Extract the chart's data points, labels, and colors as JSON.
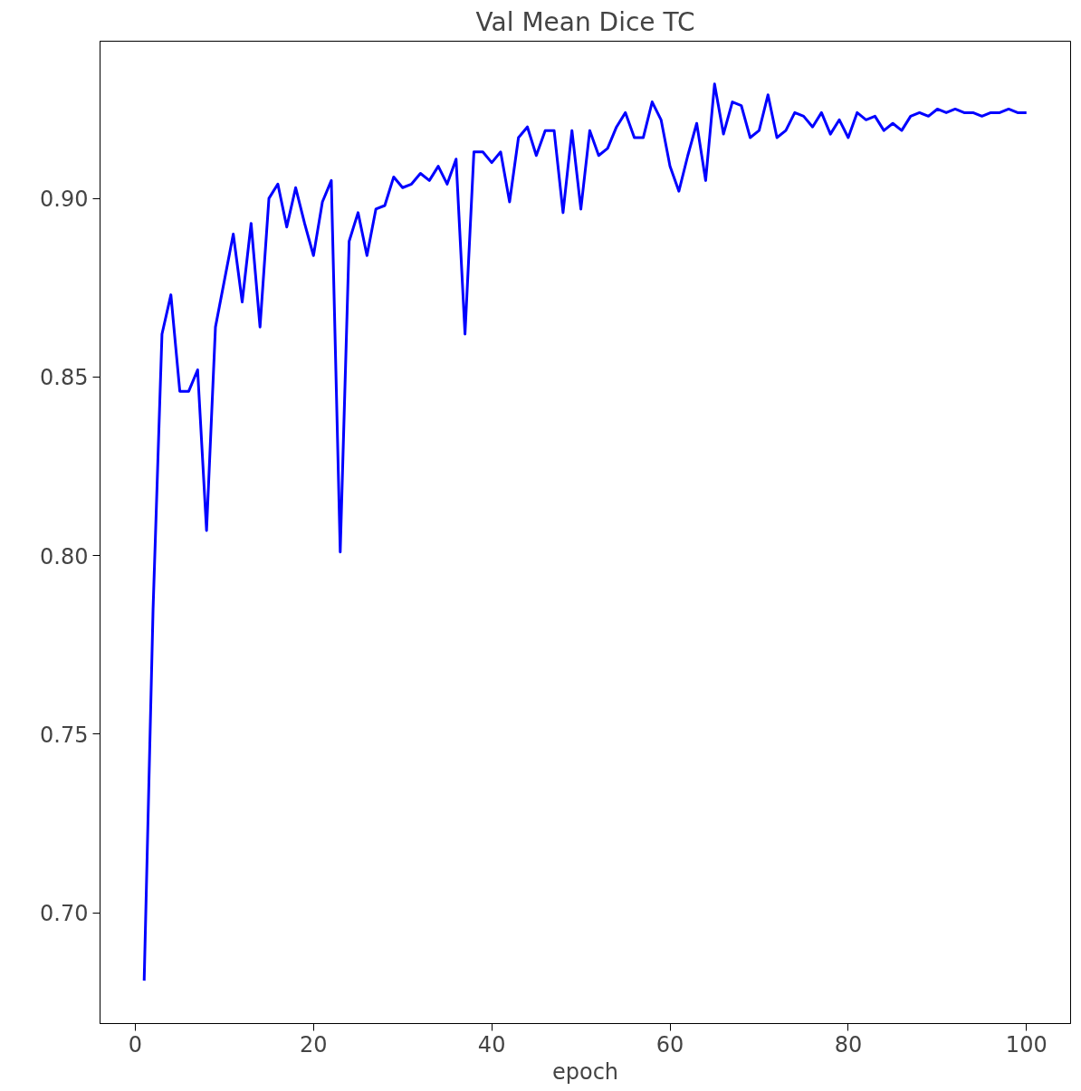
{
  "chart_data": {
    "type": "line",
    "title": "Val Mean Dice TC",
    "xlabel": "epoch",
    "x": [
      1,
      2,
      3,
      4,
      5,
      6,
      7,
      8,
      9,
      10,
      11,
      12,
      13,
      14,
      15,
      16,
      17,
      18,
      19,
      20,
      21,
      22,
      23,
      24,
      25,
      26,
      27,
      28,
      29,
      30,
      31,
      32,
      33,
      34,
      35,
      36,
      37,
      38,
      39,
      40,
      41,
      42,
      43,
      44,
      45,
      46,
      47,
      48,
      49,
      50,
      51,
      52,
      53,
      54,
      55,
      56,
      57,
      58,
      59,
      60,
      61,
      62,
      63,
      64,
      65,
      66,
      67,
      68,
      69,
      70,
      71,
      72,
      73,
      74,
      75,
      76,
      77,
      78,
      79,
      80,
      81,
      82,
      83,
      84,
      85,
      86,
      87,
      88,
      89,
      90,
      91,
      92,
      93,
      94,
      95,
      96,
      97,
      98,
      99,
      100
    ],
    "series": [
      {
        "color": "#0000ff",
        "values": [
          0.681,
          0.785,
          0.862,
          0.873,
          0.846,
          0.846,
          0.852,
          0.807,
          0.864,
          0.877,
          0.89,
          0.871,
          0.893,
          0.864,
          0.9,
          0.904,
          0.892,
          0.903,
          0.893,
          0.884,
          0.899,
          0.905,
          0.801,
          0.888,
          0.896,
          0.884,
          0.897,
          0.898,
          0.906,
          0.903,
          0.904,
          0.907,
          0.905,
          0.909,
          0.904,
          0.911,
          0.862,
          0.913,
          0.913,
          0.91,
          0.913,
          0.899,
          0.917,
          0.92,
          0.912,
          0.919,
          0.919,
          0.896,
          0.919,
          0.897,
          0.919,
          0.912,
          0.914,
          0.92,
          0.924,
          0.917,
          0.917,
          0.927,
          0.922,
          0.909,
          0.902,
          0.912,
          0.921,
          0.905,
          0.932,
          0.918,
          0.927,
          0.926,
          0.917,
          0.919,
          0.929,
          0.917,
          0.919,
          0.924,
          0.923,
          0.92,
          0.924,
          0.918,
          0.922,
          0.917,
          0.924,
          0.922,
          0.923,
          0.919,
          0.921,
          0.919,
          0.923,
          0.924,
          0.923,
          0.925,
          0.924,
          0.925,
          0.924,
          0.924,
          0.923,
          0.924,
          0.924,
          0.925,
          0.924,
          0.924
        ]
      }
    ],
    "xlim": [
      -3.95,
      104.95
    ],
    "ylim": [
      0.669,
      0.944
    ],
    "xticks": [
      0,
      20,
      40,
      60,
      80,
      100
    ],
    "yticks": [
      {
        "value": 0.7,
        "label": "0.70"
      },
      {
        "value": 0.75,
        "label": "0.75"
      },
      {
        "value": 0.8,
        "label": "0.80"
      },
      {
        "value": 0.85,
        "label": "0.85"
      },
      {
        "value": 0.9,
        "label": "0.90"
      }
    ],
    "grid": false,
    "line_style": "solid",
    "marker": "none"
  }
}
